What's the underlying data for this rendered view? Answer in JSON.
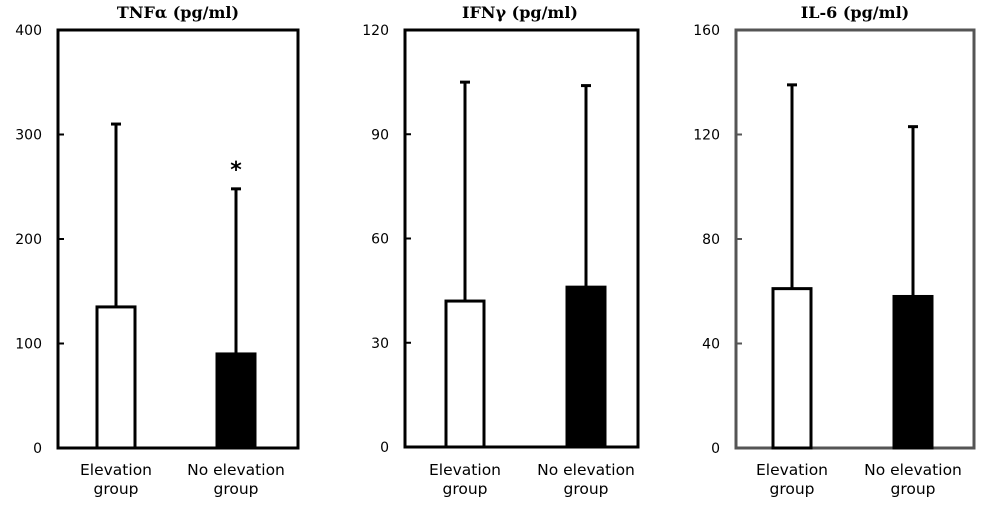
{
  "chart_data": [
    {
      "type": "bar",
      "title": "TNFα (pg/ml)",
      "categories": [
        "Elevation group",
        "No elevation group"
      ],
      "values": [
        135,
        90
      ],
      "error_upper": [
        310,
        248
      ],
      "fills": [
        "#ffffff",
        "#000000"
      ],
      "ylim": [
        0,
        400
      ],
      "yticks": [
        "0",
        "100",
        "200",
        "300",
        "400"
      ],
      "annotations": [
        {
          "category": "No elevation group",
          "text": "*"
        }
      ]
    },
    {
      "type": "bar",
      "title": "IFNγ (pg/ml)",
      "categories": [
        "Elevation group",
        "No elevation group"
      ],
      "values": [
        42,
        46
      ],
      "error_upper": [
        105,
        104
      ],
      "fills": [
        "#ffffff",
        "#000000"
      ],
      "ylim": [
        0,
        120
      ],
      "yticks": [
        "0",
        "30",
        "60",
        "90",
        "120"
      ],
      "annotations": []
    },
    {
      "type": "bar",
      "title": "IL-6 (pg/ml)",
      "categories": [
        "Elevation group",
        "No elevation group"
      ],
      "values": [
        61,
        58
      ],
      "error_upper": [
        139,
        123
      ],
      "fills": [
        "#ffffff",
        "#000000"
      ],
      "ylim": [
        0,
        160
      ],
      "yticks": [
        "0",
        "40",
        "80",
        "120",
        "160"
      ],
      "annotations": [],
      "frame_color": "#555555"
    }
  ]
}
